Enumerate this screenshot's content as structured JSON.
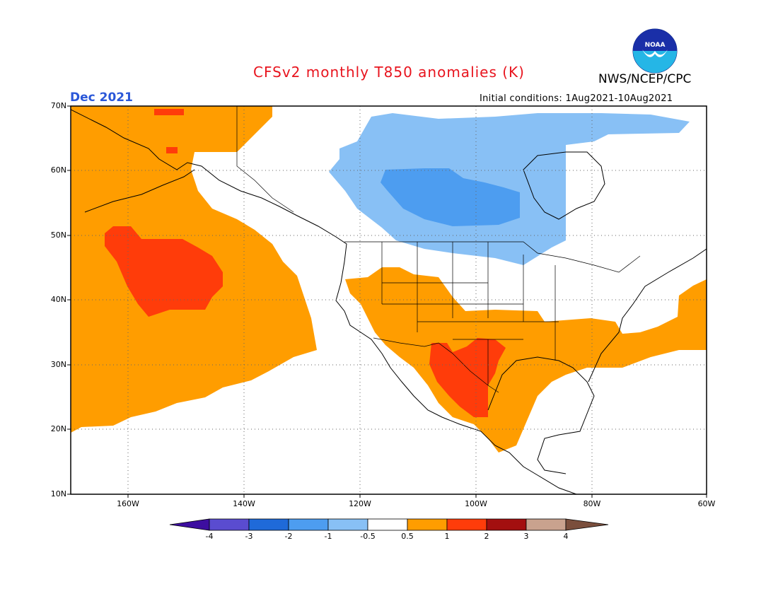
{
  "title": "CFSv2 monthly T850 anomalies (K)",
  "agency": "NWS/NCEP/CPC",
  "logo_text": "NOAA",
  "valid_month": "Dec 2021",
  "initial_conditions": "Initial conditions: 1Aug2021-10Aug2021",
  "lat_labels": [
    "70N",
    "60N",
    "50N",
    "40N",
    "30N",
    "20N",
    "10N"
  ],
  "lon_labels": [
    "160W",
    "140W",
    "120W",
    "100W",
    "80W",
    "60W"
  ],
  "colorbar": {
    "labels": [
      "-4",
      "-3",
      "-2",
      "-1",
      "-0.5",
      "0.5",
      "1",
      "2",
      "3",
      "4"
    ],
    "colors": [
      "#3d0ea0",
      "#5a4cd0",
      "#1f6ad9",
      "#4d9df0",
      "#88c0f5",
      "#ffffff",
      "#ff9d00",
      "#ff3c0a",
      "#a30f0f",
      "#c9a28e",
      "#7a4e3c"
    ]
  },
  "palette": {
    "orange": "#ff9d00",
    "red": "#ff3c0a",
    "light_blue": "#88c0f5",
    "mid_blue": "#4d9df0",
    "title": "#e8141e",
    "month": "#2a57d8"
  }
}
